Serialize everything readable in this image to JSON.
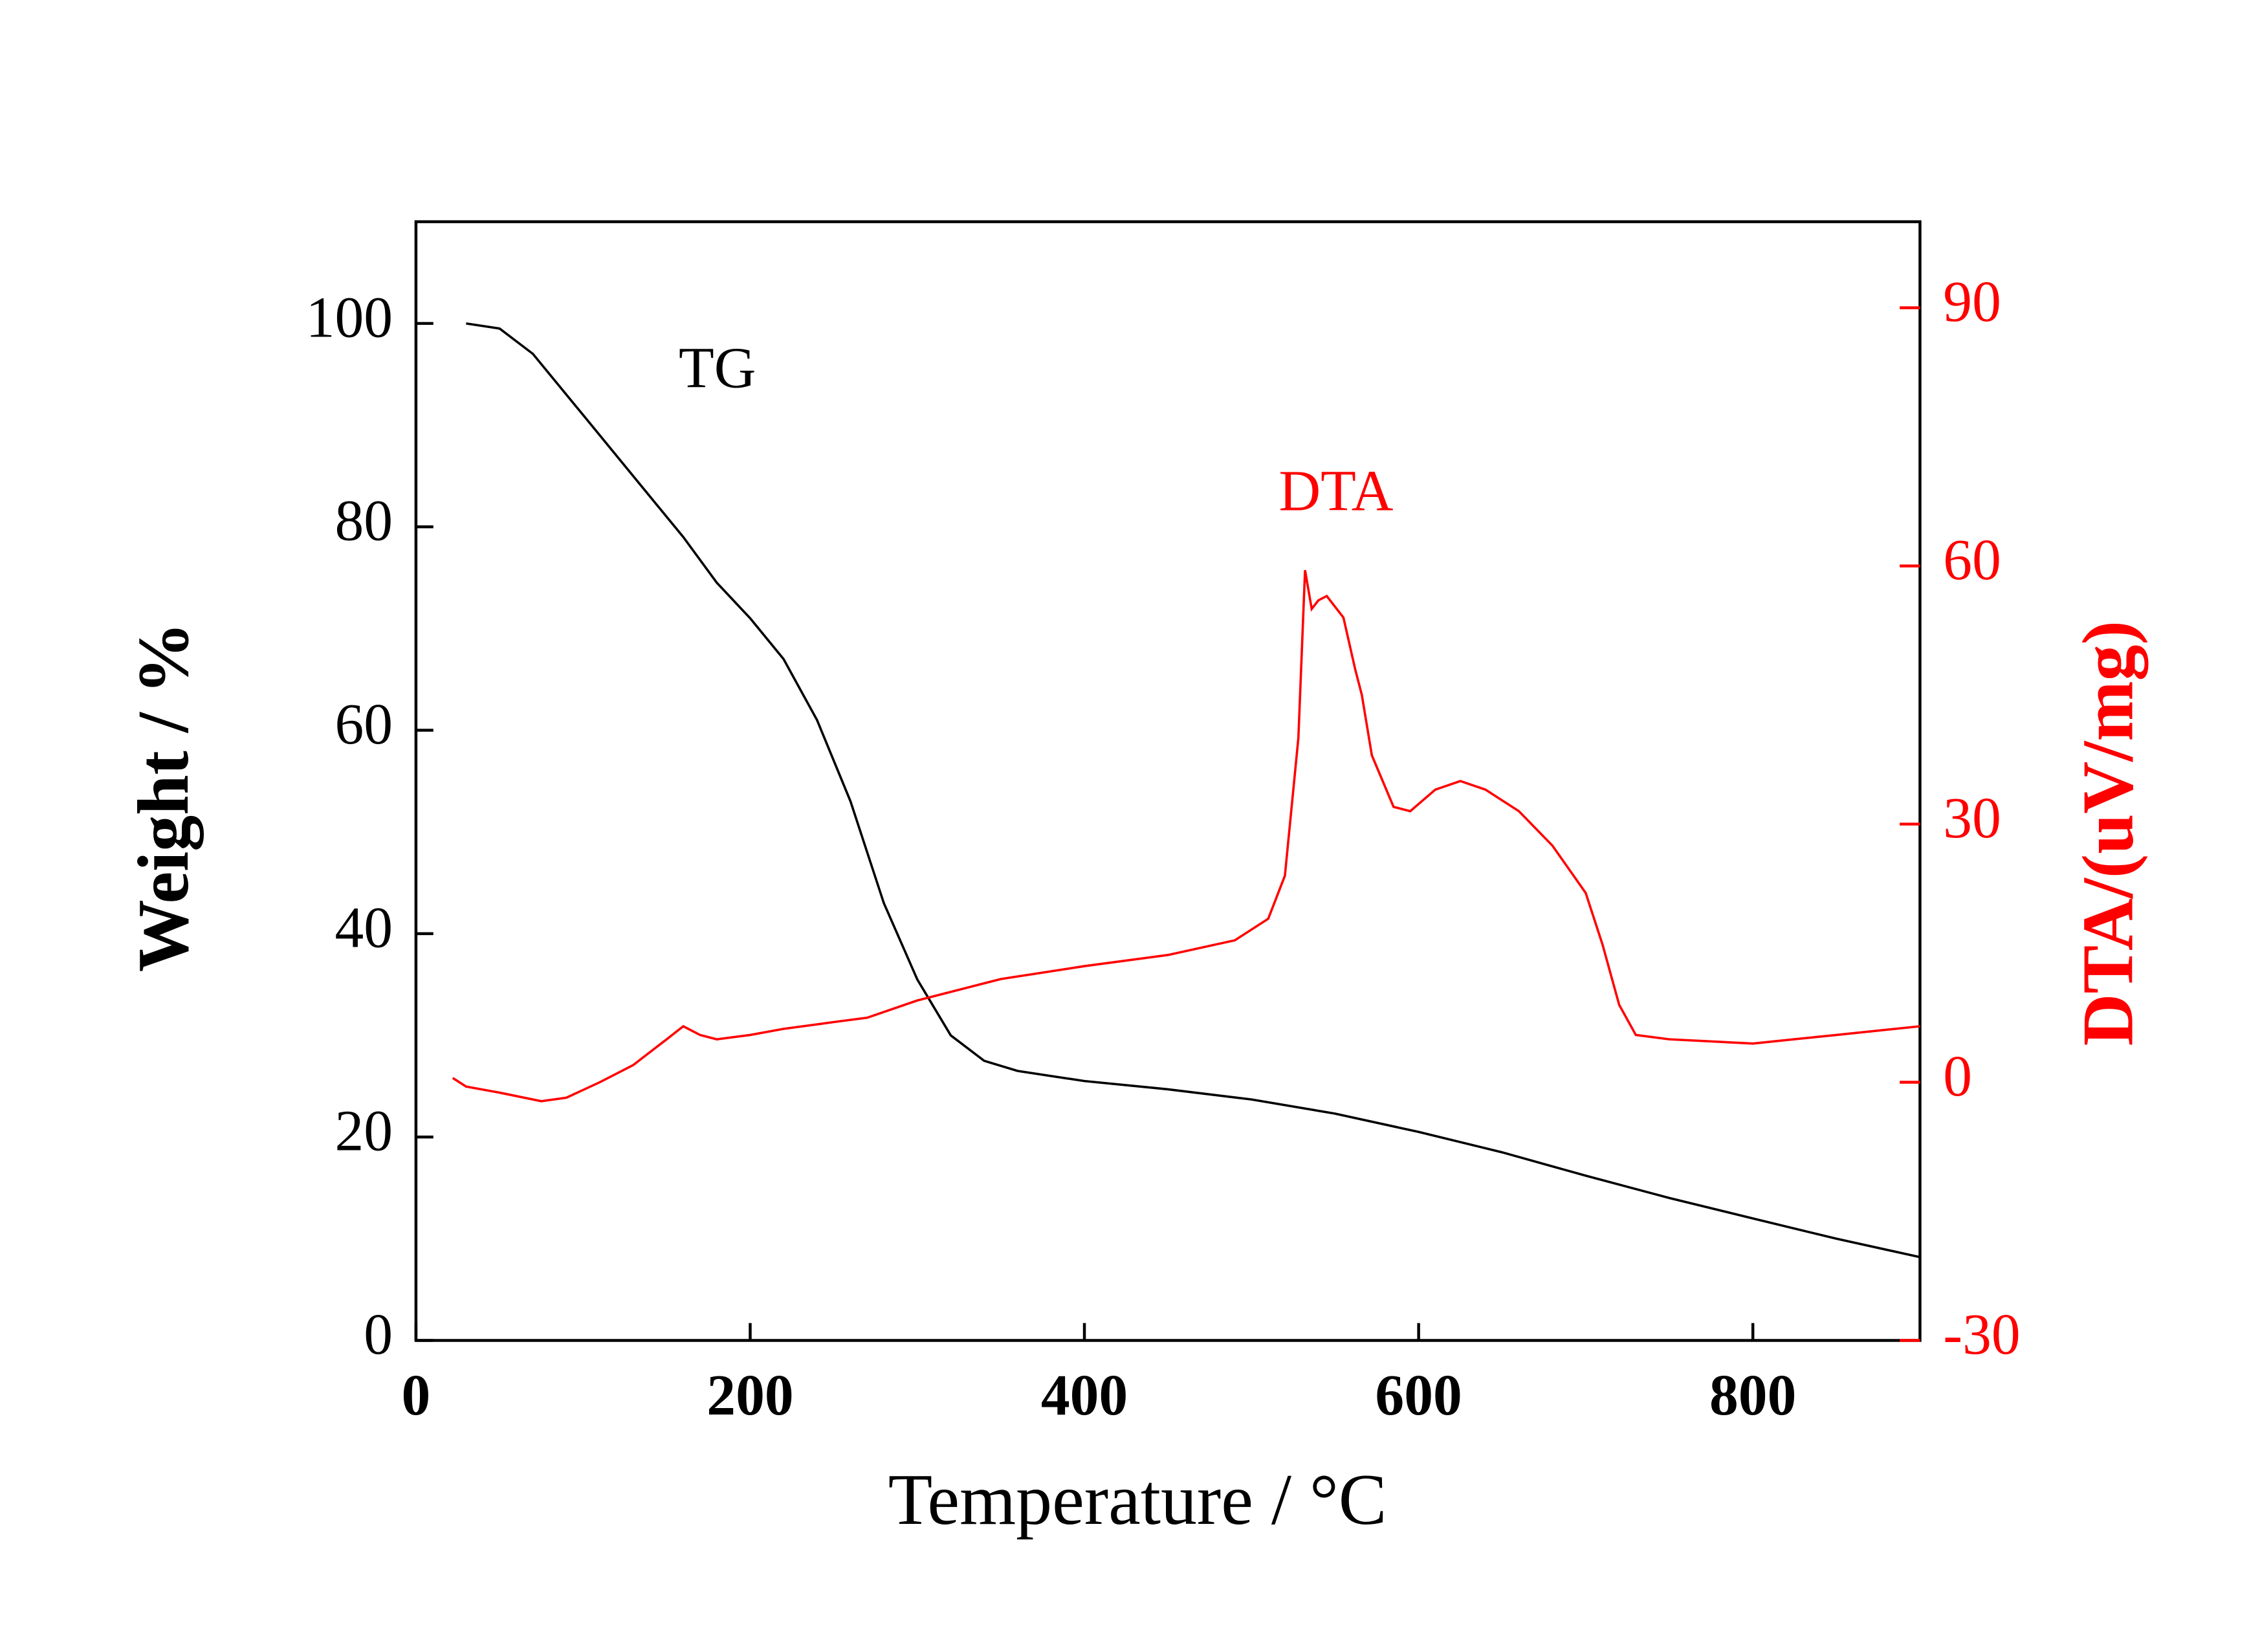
{
  "chart_data": {
    "type": "line",
    "x_label": "Temperature / °C",
    "y_label": "Weight / %",
    "y2_label": "DTA/(uV/mg)",
    "xlim": [
      0,
      900
    ],
    "xticks": [
      0,
      200,
      400,
      600,
      800
    ],
    "ylim": [
      0,
      110
    ],
    "yticks": [
      0,
      20,
      40,
      60,
      80,
      100
    ],
    "y2lim": [
      -30,
      100
    ],
    "y2ticks": [
      -30,
      0,
      30,
      60,
      90
    ],
    "y2color": "#ff0000",
    "series": [
      {
        "name": "TG",
        "color": "#000000",
        "axis": "y",
        "x": [
          30,
          50,
          70,
          100,
          130,
          160,
          180,
          200,
          220,
          240,
          260,
          280,
          300,
          320,
          340,
          360,
          400,
          450,
          500,
          550,
          600,
          650,
          700,
          750,
          800,
          850,
          900
        ],
        "values": [
          100,
          99.5,
          97,
          91,
          85,
          79,
          74.5,
          71,
          67,
          61,
          53,
          43,
          35.5,
          30,
          27.5,
          26.5,
          25.5,
          24.7,
          23.7,
          22.3,
          20.5,
          18.5,
          16.2,
          14,
          12,
          10,
          8.2
        ]
      },
      {
        "name": "DTA",
        "color": "#ff0000",
        "axis": "y2",
        "x": [
          22,
          30,
          50,
          75,
          90,
          110,
          130,
          150,
          160,
          170,
          180,
          200,
          220,
          250,
          270,
          300,
          350,
          400,
          450,
          490,
          510,
          520,
          528,
          532,
          536,
          540,
          545,
          555,
          562,
          566,
          572,
          585,
          595,
          610,
          625,
          640,
          660,
          680,
          700,
          710,
          720,
          730,
          750,
          800,
          850,
          900
        ],
        "values": [
          0.5,
          -0.5,
          -1.2,
          -2.2,
          -1.8,
          0,
          2,
          5,
          6.5,
          5.5,
          5,
          5.5,
          6.2,
          7,
          7.5,
          9.5,
          12,
          13.5,
          14.8,
          16.5,
          19,
          24,
          40,
          59.5,
          55,
          56,
          56.5,
          54,
          48,
          45,
          38,
          32,
          31.5,
          34,
          35,
          34,
          31.5,
          27.5,
          22,
          16,
          9,
          5.5,
          5,
          4.5,
          5.5,
          6.5
        ]
      }
    ]
  }
}
